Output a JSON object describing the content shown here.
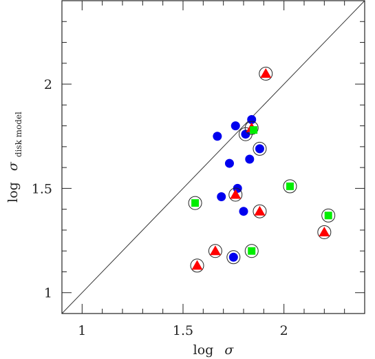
{
  "chart_data": {
    "type": "scatter",
    "title": "",
    "xlabel": {
      "prefix": "log",
      "symbol": "σ",
      "subscript": ""
    },
    "ylabel": {
      "prefix": "log",
      "symbol": "σ",
      "subscript": "disk model"
    },
    "xlim": [
      0.9,
      2.4
    ],
    "ylim": [
      0.9,
      2.4
    ],
    "xticks": [
      1,
      1.5,
      2
    ],
    "yticks": [
      1,
      1.5,
      2
    ],
    "x_tick_labels": [
      "1",
      "1.5",
      "2"
    ],
    "y_tick_labels": [
      "1",
      "1.5",
      "2"
    ],
    "grid": false,
    "reference_line": {
      "type": "one-to-one",
      "x": [
        0.9,
        2.4
      ],
      "y": [
        0.9,
        2.4
      ]
    },
    "series": [
      {
        "marker": "circle",
        "color": "#0000ee",
        "points": [
          {
            "x": 1.67,
            "y": 1.75,
            "ring": false
          },
          {
            "x": 1.76,
            "y": 1.8,
            "ring": false
          },
          {
            "x": 1.81,
            "y": 1.76,
            "ring": true
          },
          {
            "x": 1.84,
            "y": 1.83,
            "ring": false
          },
          {
            "x": 1.88,
            "y": 1.69,
            "ring": true
          },
          {
            "x": 1.73,
            "y": 1.62,
            "ring": false
          },
          {
            "x": 1.83,
            "y": 1.64,
            "ring": false
          },
          {
            "x": 1.77,
            "y": 1.5,
            "ring": false
          },
          {
            "x": 1.69,
            "y": 1.46,
            "ring": false
          },
          {
            "x": 1.8,
            "y": 1.39,
            "ring": false
          },
          {
            "x": 1.75,
            "y": 1.17,
            "ring": true
          }
        ]
      },
      {
        "marker": "triangle",
        "color": "#ff0000",
        "points": [
          {
            "x": 1.91,
            "y": 2.05,
            "ring": true
          },
          {
            "x": 1.84,
            "y": 1.79,
            "ring": true
          },
          {
            "x": 1.76,
            "y": 1.47,
            "ring": true
          },
          {
            "x": 1.88,
            "y": 1.39,
            "ring": true
          },
          {
            "x": 2.2,
            "y": 1.29,
            "ring": true
          },
          {
            "x": 1.66,
            "y": 1.2,
            "ring": true
          },
          {
            "x": 1.57,
            "y": 1.13,
            "ring": true
          }
        ]
      },
      {
        "marker": "square",
        "color": "#00ee00",
        "points": [
          {
            "x": 1.85,
            "y": 1.78,
            "ring": false
          },
          {
            "x": 2.03,
            "y": 1.51,
            "ring": true
          },
          {
            "x": 1.56,
            "y": 1.43,
            "ring": true
          },
          {
            "x": 2.22,
            "y": 1.37,
            "ring": true
          },
          {
            "x": 1.84,
            "y": 1.2,
            "ring": true
          }
        ]
      }
    ]
  }
}
